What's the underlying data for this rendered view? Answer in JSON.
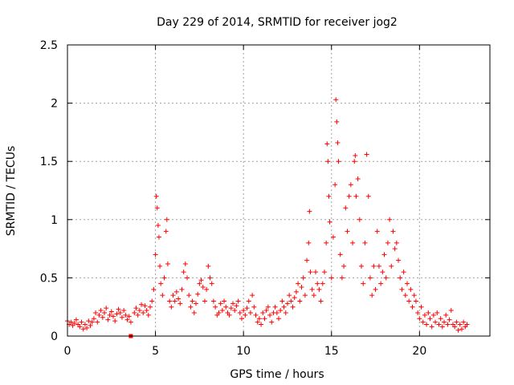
{
  "chart_data": {
    "type": "scatter",
    "title": "Day 229 of 2014, SRMTID for receiver jog2",
    "xlabel": "GPS time / hours",
    "ylabel": "SRMTID / TECUs",
    "xlim": [
      0,
      24
    ],
    "ylim": [
      0,
      2.5
    ],
    "xticks": [
      0,
      5,
      10,
      15,
      20
    ],
    "xtick_labels": [
      "0",
      "5",
      "10",
      "15",
      "20"
    ],
    "yticks": [
      0,
      0.5,
      1,
      1.5,
      2,
      2.5
    ],
    "ytick_labels": [
      "0",
      "0.5",
      "1",
      "1.5",
      "2",
      "2.5"
    ],
    "grid": true,
    "marker": "+",
    "color": "#ff0000",
    "square_marker": {
      "x": 3.6,
      "y": 0.0
    },
    "series": [
      {
        "name": "SRMTID",
        "points": [
          [
            0.0,
            0.13
          ],
          [
            0.1,
            0.1
          ],
          [
            0.2,
            0.12
          ],
          [
            0.3,
            0.09
          ],
          [
            0.4,
            0.11
          ],
          [
            0.5,
            0.14
          ],
          [
            0.6,
            0.1
          ],
          [
            0.7,
            0.08
          ],
          [
            0.8,
            0.12
          ],
          [
            0.9,
            0.06
          ],
          [
            1.0,
            0.1
          ],
          [
            1.1,
            0.07
          ],
          [
            1.2,
            0.13
          ],
          [
            1.3,
            0.09
          ],
          [
            1.4,
            0.12
          ],
          [
            1.5,
            0.15
          ],
          [
            1.6,
            0.2
          ],
          [
            1.7,
            0.12
          ],
          [
            1.8,
            0.18
          ],
          [
            1.9,
            0.22
          ],
          [
            2.0,
            0.16
          ],
          [
            2.1,
            0.2
          ],
          [
            2.2,
            0.24
          ],
          [
            2.3,
            0.14
          ],
          [
            2.4,
            0.18
          ],
          [
            2.5,
            0.21
          ],
          [
            2.6,
            0.17
          ],
          [
            2.7,
            0.13
          ],
          [
            2.8,
            0.19
          ],
          [
            2.9,
            0.23
          ],
          [
            3.0,
            0.2
          ],
          [
            3.1,
            0.16
          ],
          [
            3.2,
            0.22
          ],
          [
            3.3,
            0.18
          ],
          [
            3.4,
            0.14
          ],
          [
            3.5,
            0.17
          ],
          [
            3.6,
            0.12
          ],
          [
            3.8,
            0.2
          ],
          [
            3.9,
            0.24
          ],
          [
            4.0,
            0.18
          ],
          [
            4.1,
            0.22
          ],
          [
            4.2,
            0.27
          ],
          [
            4.3,
            0.2
          ],
          [
            4.4,
            0.26
          ],
          [
            4.5,
            0.22
          ],
          [
            4.6,
            0.18
          ],
          [
            4.7,
            0.25
          ],
          [
            4.8,
            0.3
          ],
          [
            4.9,
            0.4
          ],
          [
            5.0,
            0.7
          ],
          [
            5.05,
            1.2
          ],
          [
            5.1,
            1.1
          ],
          [
            5.15,
            0.95
          ],
          [
            5.2,
            0.85
          ],
          [
            5.25,
            0.6
          ],
          [
            5.3,
            0.45
          ],
          [
            5.4,
            0.35
          ],
          [
            5.5,
            0.5
          ],
          [
            5.6,
            0.9
          ],
          [
            5.65,
            1.0
          ],
          [
            5.7,
            0.62
          ],
          [
            5.8,
            0.3
          ],
          [
            5.9,
            0.25
          ],
          [
            6.0,
            0.35
          ],
          [
            6.1,
            0.3
          ],
          [
            6.2,
            0.38
          ],
          [
            6.3,
            0.32
          ],
          [
            6.4,
            0.28
          ],
          [
            6.5,
            0.4
          ],
          [
            6.6,
            0.55
          ],
          [
            6.7,
            0.62
          ],
          [
            6.8,
            0.5
          ],
          [
            6.9,
            0.35
          ],
          [
            7.0,
            0.25
          ],
          [
            7.1,
            0.3
          ],
          [
            7.2,
            0.2
          ],
          [
            7.3,
            0.28
          ],
          [
            7.4,
            0.36
          ],
          [
            7.5,
            0.45
          ],
          [
            7.6,
            0.48
          ],
          [
            7.7,
            0.42
          ],
          [
            7.8,
            0.3
          ],
          [
            7.9,
            0.4
          ],
          [
            8.0,
            0.6
          ],
          [
            8.1,
            0.5
          ],
          [
            8.2,
            0.45
          ],
          [
            8.3,
            0.3
          ],
          [
            8.4,
            0.25
          ],
          [
            8.5,
            0.18
          ],
          [
            8.6,
            0.2
          ],
          [
            8.7,
            0.28
          ],
          [
            8.8,
            0.22
          ],
          [
            8.9,
            0.3
          ],
          [
            9.0,
            0.25
          ],
          [
            9.1,
            0.2
          ],
          [
            9.2,
            0.18
          ],
          [
            9.3,
            0.24
          ],
          [
            9.4,
            0.28
          ],
          [
            9.5,
            0.22
          ],
          [
            9.6,
            0.26
          ],
          [
            9.7,
            0.3
          ],
          [
            9.8,
            0.2
          ],
          [
            9.9,
            0.15
          ],
          [
            10.0,
            0.22
          ],
          [
            10.1,
            0.18
          ],
          [
            10.2,
            0.24
          ],
          [
            10.3,
            0.3
          ],
          [
            10.4,
            0.2
          ],
          [
            10.5,
            0.35
          ],
          [
            10.6,
            0.25
          ],
          [
            10.7,
            0.18
          ],
          [
            10.8,
            0.12
          ],
          [
            10.9,
            0.15
          ],
          [
            11.0,
            0.1
          ],
          [
            11.1,
            0.2
          ],
          [
            11.2,
            0.15
          ],
          [
            11.3,
            0.22
          ],
          [
            11.4,
            0.25
          ],
          [
            11.5,
            0.18
          ],
          [
            11.6,
            0.12
          ],
          [
            11.7,
            0.2
          ],
          [
            11.8,
            0.25
          ],
          [
            11.9,
            0.2
          ],
          [
            12.0,
            0.15
          ],
          [
            12.1,
            0.22
          ],
          [
            12.2,
            0.3
          ],
          [
            12.3,
            0.25
          ],
          [
            12.4,
            0.2
          ],
          [
            12.5,
            0.28
          ],
          [
            12.6,
            0.35
          ],
          [
            12.7,
            0.3
          ],
          [
            12.8,
            0.25
          ],
          [
            12.9,
            0.33
          ],
          [
            13.0,
            0.38
          ],
          [
            13.1,
            0.45
          ],
          [
            13.2,
            0.3
          ],
          [
            13.3,
            0.42
          ],
          [
            13.4,
            0.5
          ],
          [
            13.5,
            0.35
          ],
          [
            13.6,
            0.65
          ],
          [
            13.7,
            0.8
          ],
          [
            13.75,
            1.07
          ],
          [
            13.8,
            0.55
          ],
          [
            13.9,
            0.4
          ],
          [
            14.0,
            0.35
          ],
          [
            14.1,
            0.55
          ],
          [
            14.2,
            0.45
          ],
          [
            14.3,
            0.4
          ],
          [
            14.4,
            0.3
          ],
          [
            14.5,
            0.45
          ],
          [
            14.6,
            0.55
          ],
          [
            14.7,
            0.8
          ],
          [
            14.75,
            1.65
          ],
          [
            14.8,
            1.5
          ],
          [
            14.85,
            1.2
          ],
          [
            14.9,
            0.98
          ],
          [
            15.0,
            0.5
          ],
          [
            15.1,
            0.85
          ],
          [
            15.2,
            1.3
          ],
          [
            15.25,
            2.03
          ],
          [
            15.3,
            1.84
          ],
          [
            15.35,
            1.66
          ],
          [
            15.4,
            1.5
          ],
          [
            15.5,
            0.7
          ],
          [
            15.6,
            0.5
          ],
          [
            15.7,
            0.6
          ],
          [
            15.8,
            1.1
          ],
          [
            15.9,
            0.9
          ],
          [
            16.0,
            1.2
          ],
          [
            16.1,
            1.3
          ],
          [
            16.2,
            0.8
          ],
          [
            16.3,
            1.5
          ],
          [
            16.35,
            1.55
          ],
          [
            16.4,
            1.2
          ],
          [
            16.5,
            1.35
          ],
          [
            16.6,
            1.0
          ],
          [
            16.7,
            0.6
          ],
          [
            16.8,
            0.45
          ],
          [
            16.9,
            0.8
          ],
          [
            17.0,
            1.56
          ],
          [
            17.1,
            1.2
          ],
          [
            17.2,
            0.5
          ],
          [
            17.3,
            0.35
          ],
          [
            17.4,
            0.6
          ],
          [
            17.5,
            0.4
          ],
          [
            17.6,
            0.9
          ],
          [
            17.7,
            0.6
          ],
          [
            17.8,
            0.45
          ],
          [
            17.9,
            0.55
          ],
          [
            18.0,
            0.7
          ],
          [
            18.1,
            0.5
          ],
          [
            18.2,
            0.8
          ],
          [
            18.3,
            1.0
          ],
          [
            18.4,
            0.6
          ],
          [
            18.5,
            0.9
          ],
          [
            18.6,
            0.75
          ],
          [
            18.7,
            0.8
          ],
          [
            18.8,
            0.65
          ],
          [
            18.9,
            0.5
          ],
          [
            19.0,
            0.4
          ],
          [
            19.1,
            0.55
          ],
          [
            19.2,
            0.35
          ],
          [
            19.3,
            0.45
          ],
          [
            19.4,
            0.3
          ],
          [
            19.5,
            0.4
          ],
          [
            19.6,
            0.25
          ],
          [
            19.7,
            0.35
          ],
          [
            19.8,
            0.3
          ],
          [
            19.9,
            0.2
          ],
          [
            20.0,
            0.15
          ],
          [
            20.1,
            0.25
          ],
          [
            20.2,
            0.12
          ],
          [
            20.3,
            0.18
          ],
          [
            20.4,
            0.1
          ],
          [
            20.5,
            0.2
          ],
          [
            20.6,
            0.15
          ],
          [
            20.7,
            0.08
          ],
          [
            20.8,
            0.18
          ],
          [
            20.9,
            0.12
          ],
          [
            21.0,
            0.2
          ],
          [
            21.1,
            0.1
          ],
          [
            21.2,
            0.15
          ],
          [
            21.3,
            0.08
          ],
          [
            21.4,
            0.12
          ],
          [
            21.5,
            0.18
          ],
          [
            21.6,
            0.1
          ],
          [
            21.7,
            0.14
          ],
          [
            21.8,
            0.22
          ],
          [
            21.9,
            0.1
          ],
          [
            22.0,
            0.08
          ],
          [
            22.1,
            0.12
          ],
          [
            22.2,
            0.05
          ],
          [
            22.3,
            0.1
          ],
          [
            22.4,
            0.06
          ],
          [
            22.5,
            0.12
          ],
          [
            22.6,
            0.08
          ],
          [
            22.7,
            0.1
          ]
        ]
      }
    ]
  }
}
